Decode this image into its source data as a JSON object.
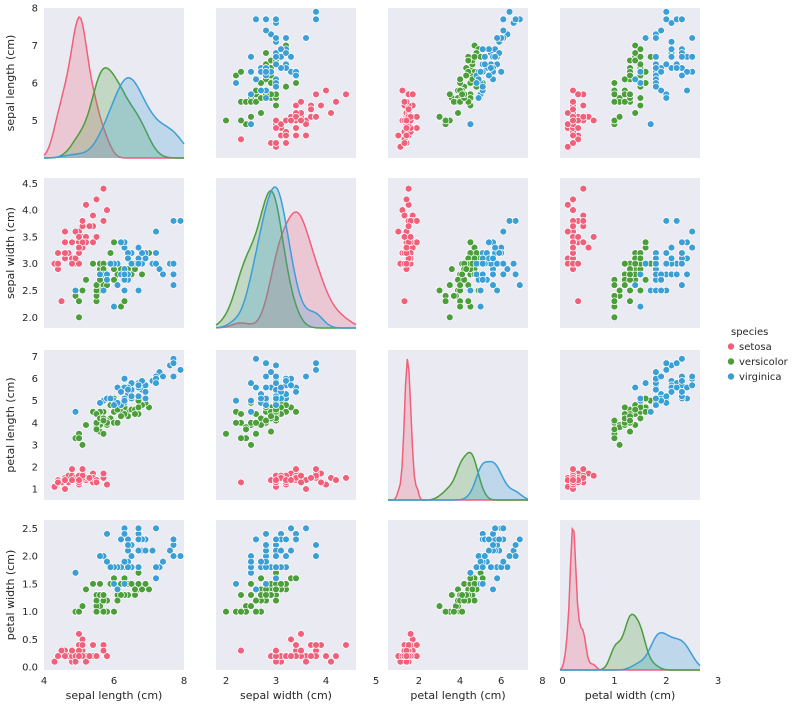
{
  "chart_data": {
    "type": "pairplot",
    "variables": [
      "sepal length (cm)",
      "sepal width (cm)",
      "petal length (cm)",
      "petal width (cm)"
    ],
    "ranges": [
      [
        4,
        8
      ],
      [
        1.8,
        4.6
      ],
      [
        0.5,
        7.3
      ],
      [
        -0.05,
        2.65
      ]
    ],
    "ticks": [
      [
        "4",
        "6",
        "8"
      ],
      [
        "2",
        "3",
        "4",
        "5"
      ],
      [
        "2",
        "4",
        "6",
        "8"
      ],
      [
        "0",
        "1",
        "2",
        "3"
      ]
    ],
    "y_ticks": [
      [
        "5",
        "6",
        "7",
        "8"
      ],
      [
        "2.0",
        "2.5",
        "3.0",
        "3.5",
        "4.0",
        "4.5"
      ],
      [
        "1",
        "2",
        "3",
        "4",
        "5",
        "6",
        "7"
      ],
      [
        "0.0",
        "0.5",
        "1.0",
        "1.5",
        "2.0",
        "2.5"
      ]
    ],
    "legend": {
      "title": "species",
      "entries": [
        "setosa",
        "versicolor",
        "virginica"
      ]
    },
    "colors": {
      "setosa": "#f0607a",
      "versicolor": "#4b9e3a",
      "virginica": "#3b9fd6",
      "panel_bg": "#eaeaf2"
    },
    "series": [
      {
        "name": "setosa",
        "points": [
          [
            5.1,
            3.5,
            1.4,
            0.2
          ],
          [
            4.9,
            3.0,
            1.4,
            0.2
          ],
          [
            4.7,
            3.2,
            1.3,
            0.2
          ],
          [
            4.6,
            3.1,
            1.5,
            0.2
          ],
          [
            5.0,
            3.6,
            1.4,
            0.2
          ],
          [
            5.4,
            3.9,
            1.7,
            0.4
          ],
          [
            4.6,
            3.4,
            1.4,
            0.3
          ],
          [
            5.0,
            3.4,
            1.5,
            0.2
          ],
          [
            4.4,
            2.9,
            1.4,
            0.2
          ],
          [
            4.9,
            3.1,
            1.5,
            0.1
          ],
          [
            5.4,
            3.7,
            1.5,
            0.2
          ],
          [
            4.8,
            3.4,
            1.6,
            0.2
          ],
          [
            4.8,
            3.0,
            1.4,
            0.1
          ],
          [
            4.3,
            3.0,
            1.1,
            0.1
          ],
          [
            5.8,
            4.0,
            1.2,
            0.2
          ],
          [
            5.7,
            4.4,
            1.5,
            0.4
          ],
          [
            5.4,
            3.9,
            1.3,
            0.4
          ],
          [
            5.1,
            3.5,
            1.4,
            0.3
          ],
          [
            5.7,
            3.8,
            1.7,
            0.3
          ],
          [
            5.1,
            3.8,
            1.5,
            0.3
          ],
          [
            5.4,
            3.4,
            1.7,
            0.2
          ],
          [
            5.1,
            3.7,
            1.5,
            0.4
          ],
          [
            4.6,
            3.6,
            1.0,
            0.2
          ],
          [
            5.1,
            3.3,
            1.7,
            0.5
          ],
          [
            4.8,
            3.4,
            1.9,
            0.2
          ],
          [
            5.0,
            3.0,
            1.6,
            0.2
          ],
          [
            5.0,
            3.4,
            1.6,
            0.4
          ],
          [
            5.2,
            3.5,
            1.5,
            0.2
          ],
          [
            5.2,
            3.4,
            1.4,
            0.2
          ],
          [
            4.7,
            3.2,
            1.6,
            0.2
          ],
          [
            4.8,
            3.1,
            1.6,
            0.2
          ],
          [
            5.4,
            3.4,
            1.5,
            0.4
          ],
          [
            5.2,
            4.1,
            1.5,
            0.1
          ],
          [
            5.5,
            4.2,
            1.4,
            0.2
          ],
          [
            4.9,
            3.1,
            1.5,
            0.2
          ],
          [
            5.0,
            3.2,
            1.2,
            0.2
          ],
          [
            5.5,
            3.5,
            1.3,
            0.2
          ],
          [
            4.9,
            3.6,
            1.4,
            0.1
          ],
          [
            4.4,
            3.0,
            1.3,
            0.2
          ],
          [
            5.1,
            3.4,
            1.5,
            0.2
          ],
          [
            5.0,
            3.5,
            1.3,
            0.3
          ],
          [
            4.5,
            2.3,
            1.3,
            0.3
          ],
          [
            4.4,
            3.2,
            1.3,
            0.2
          ],
          [
            5.0,
            3.5,
            1.6,
            0.6
          ],
          [
            5.1,
            3.8,
            1.9,
            0.4
          ],
          [
            4.8,
            3.0,
            1.4,
            0.3
          ],
          [
            5.1,
            3.8,
            1.6,
            0.2
          ],
          [
            4.6,
            3.2,
            1.4,
            0.2
          ],
          [
            5.3,
            3.7,
            1.5,
            0.2
          ],
          [
            5.0,
            3.3,
            1.4,
            0.2
          ]
        ]
      },
      {
        "name": "versicolor",
        "points": [
          [
            7.0,
            3.2,
            4.7,
            1.4
          ],
          [
            6.4,
            3.2,
            4.5,
            1.5
          ],
          [
            6.9,
            3.1,
            4.9,
            1.5
          ],
          [
            5.5,
            2.3,
            4.0,
            1.3
          ],
          [
            6.5,
            2.8,
            4.6,
            1.5
          ],
          [
            5.7,
            2.8,
            4.5,
            1.3
          ],
          [
            6.3,
            3.3,
            4.7,
            1.6
          ],
          [
            4.9,
            2.4,
            3.3,
            1.0
          ],
          [
            6.6,
            2.9,
            4.6,
            1.3
          ],
          [
            5.2,
            2.7,
            3.9,
            1.4
          ],
          [
            5.0,
            2.0,
            3.5,
            1.0
          ],
          [
            5.9,
            3.0,
            4.2,
            1.5
          ],
          [
            6.0,
            2.2,
            4.0,
            1.0
          ],
          [
            6.1,
            2.9,
            4.7,
            1.4
          ],
          [
            5.6,
            2.9,
            3.6,
            1.3
          ],
          [
            6.7,
            3.1,
            4.4,
            1.4
          ],
          [
            5.6,
            3.0,
            4.5,
            1.5
          ],
          [
            5.8,
            2.7,
            4.1,
            1.0
          ],
          [
            6.2,
            2.2,
            4.5,
            1.5
          ],
          [
            5.6,
            2.5,
            3.9,
            1.1
          ],
          [
            5.9,
            3.2,
            4.8,
            1.8
          ],
          [
            6.1,
            2.8,
            4.0,
            1.3
          ],
          [
            6.3,
            2.5,
            4.9,
            1.5
          ],
          [
            6.1,
            2.8,
            4.7,
            1.2
          ],
          [
            6.4,
            2.9,
            4.3,
            1.3
          ],
          [
            6.6,
            3.0,
            4.4,
            1.4
          ],
          [
            6.8,
            2.8,
            4.8,
            1.4
          ],
          [
            6.7,
            3.0,
            5.0,
            1.7
          ],
          [
            6.0,
            2.9,
            4.5,
            1.5
          ],
          [
            5.7,
            2.6,
            3.5,
            1.0
          ],
          [
            5.5,
            2.4,
            3.8,
            1.1
          ],
          [
            5.5,
            2.4,
            3.7,
            1.0
          ],
          [
            5.8,
            2.7,
            3.9,
            1.2
          ],
          [
            6.0,
            2.7,
            5.1,
            1.6
          ],
          [
            5.4,
            3.0,
            4.5,
            1.5
          ],
          [
            6.0,
            3.4,
            4.5,
            1.6
          ],
          [
            6.7,
            3.1,
            4.7,
            1.5
          ],
          [
            6.3,
            2.3,
            4.4,
            1.3
          ],
          [
            5.6,
            3.0,
            4.1,
            1.3
          ],
          [
            5.5,
            2.5,
            4.0,
            1.3
          ],
          [
            5.5,
            2.6,
            4.4,
            1.2
          ],
          [
            6.1,
            3.0,
            4.6,
            1.4
          ],
          [
            5.8,
            2.6,
            4.0,
            1.2
          ],
          [
            5.0,
            2.3,
            3.3,
            1.0
          ],
          [
            5.6,
            2.7,
            4.2,
            1.3
          ],
          [
            5.7,
            3.0,
            4.2,
            1.2
          ],
          [
            5.7,
            2.9,
            4.2,
            1.3
          ],
          [
            6.2,
            2.9,
            4.3,
            1.3
          ],
          [
            5.1,
            2.5,
            3.0,
            1.1
          ],
          [
            5.7,
            2.8,
            4.1,
            1.3
          ]
        ]
      },
      {
        "name": "virginica",
        "points": [
          [
            6.3,
            3.3,
            6.0,
            2.5
          ],
          [
            5.8,
            2.7,
            5.1,
            1.9
          ],
          [
            7.1,
            3.0,
            5.9,
            2.1
          ],
          [
            6.3,
            2.9,
            5.6,
            1.8
          ],
          [
            6.5,
            3.0,
            5.8,
            2.2
          ],
          [
            7.6,
            3.0,
            6.6,
            2.1
          ],
          [
            4.9,
            2.5,
            4.5,
            1.7
          ],
          [
            7.3,
            2.9,
            6.3,
            1.8
          ],
          [
            6.7,
            2.5,
            5.8,
            1.8
          ],
          [
            7.2,
            3.6,
            6.1,
            2.5
          ],
          [
            6.5,
            3.2,
            5.1,
            2.0
          ],
          [
            6.4,
            2.7,
            5.3,
            1.9
          ],
          [
            6.8,
            3.0,
            5.5,
            2.1
          ],
          [
            5.7,
            2.5,
            5.0,
            2.0
          ],
          [
            5.8,
            2.8,
            5.1,
            2.4
          ],
          [
            6.4,
            3.2,
            5.3,
            2.3
          ],
          [
            6.5,
            3.0,
            5.5,
            1.8
          ],
          [
            7.7,
            3.8,
            6.7,
            2.2
          ],
          [
            7.7,
            2.6,
            6.9,
            2.3
          ],
          [
            6.0,
            2.2,
            5.0,
            1.5
          ],
          [
            6.9,
            3.2,
            5.7,
            2.3
          ],
          [
            5.6,
            2.8,
            4.9,
            2.0
          ],
          [
            7.7,
            2.8,
            6.7,
            2.0
          ],
          [
            6.3,
            2.7,
            4.9,
            1.8
          ],
          [
            6.7,
            3.3,
            5.7,
            2.1
          ],
          [
            7.2,
            3.2,
            6.0,
            1.8
          ],
          [
            6.2,
            2.8,
            4.8,
            1.8
          ],
          [
            6.1,
            3.0,
            4.9,
            1.8
          ],
          [
            6.4,
            2.8,
            5.6,
            2.1
          ],
          [
            7.2,
            3.0,
            5.8,
            1.6
          ],
          [
            7.4,
            2.8,
            6.1,
            1.9
          ],
          [
            7.9,
            3.8,
            6.4,
            2.0
          ],
          [
            6.4,
            2.8,
            5.6,
            2.2
          ],
          [
            6.3,
            2.8,
            5.1,
            1.5
          ],
          [
            6.1,
            2.6,
            5.6,
            1.4
          ],
          [
            7.7,
            3.0,
            6.1,
            2.3
          ],
          [
            6.3,
            3.4,
            5.6,
            2.4
          ],
          [
            6.4,
            3.1,
            5.5,
            1.8
          ],
          [
            6.0,
            3.0,
            4.8,
            1.8
          ],
          [
            6.9,
            3.1,
            5.4,
            2.1
          ],
          [
            6.7,
            3.1,
            5.6,
            2.4
          ],
          [
            6.9,
            3.1,
            5.1,
            2.3
          ],
          [
            5.8,
            2.7,
            5.1,
            1.9
          ],
          [
            6.8,
            3.2,
            5.9,
            2.3
          ],
          [
            6.7,
            3.3,
            5.7,
            2.5
          ],
          [
            6.7,
            3.0,
            5.2,
            2.3
          ],
          [
            6.3,
            2.5,
            5.0,
            1.9
          ],
          [
            6.5,
            3.0,
            5.2,
            2.0
          ],
          [
            6.2,
            3.4,
            5.4,
            2.3
          ],
          [
            5.9,
            3.0,
            5.1,
            1.8
          ]
        ]
      }
    ]
  }
}
